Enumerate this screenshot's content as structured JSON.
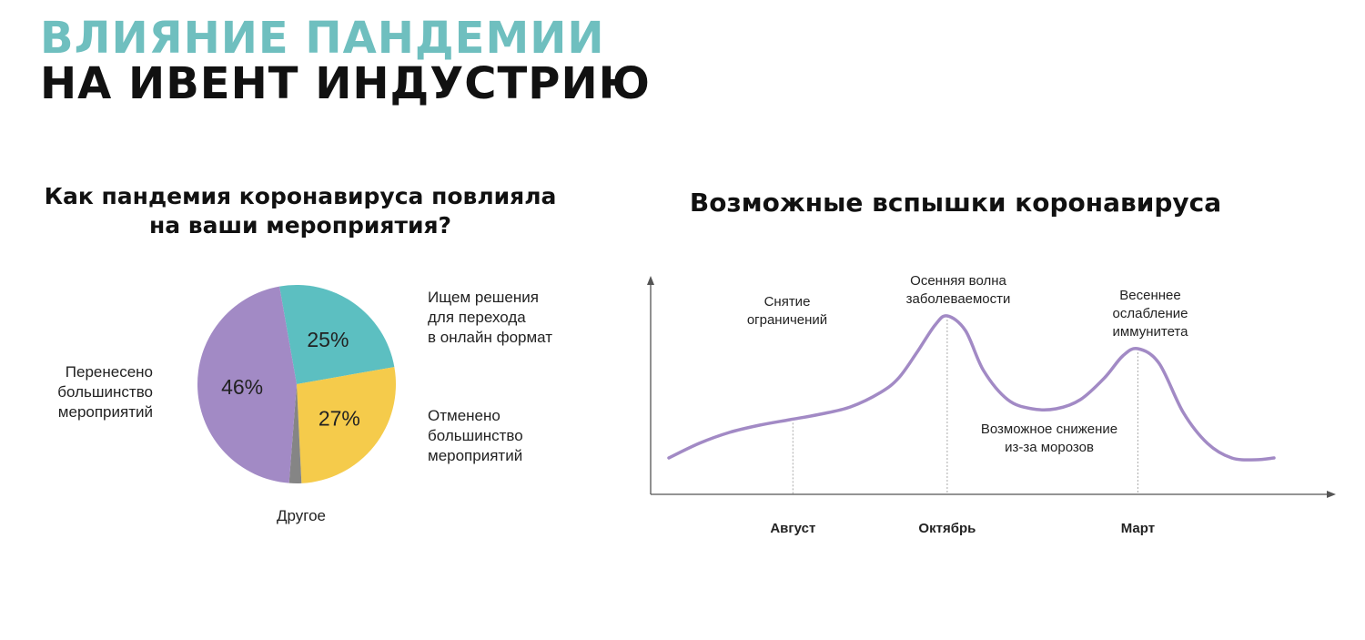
{
  "slide": {
    "title_line1": "ВЛИЯНИЕ ПАНДЕМИИ",
    "title_line2": "НА ИВЕНТ ИНДУСТРИЮ"
  },
  "pie": {
    "title_line1": "Как пандемия коронавируса повлияла",
    "title_line2": "на ваши мероприятия?",
    "label_online": [
      "Ищем решения",
      "для перехода",
      "в онлайн формат"
    ],
    "label_cancelled": [
      "Отменено",
      "большинство",
      "мероприятий"
    ],
    "label_postponed": [
      "Перенесено",
      "большинство",
      "мероприятий"
    ],
    "label_other": "Другое"
  },
  "line": {
    "title": "Возможные вспышки коронавируса",
    "ann_lifting": [
      "Снятие",
      "ограничений"
    ],
    "ann_autumn": [
      "Осенняя волна",
      "заболеваемости"
    ],
    "ann_spring": [
      "Весеннее",
      "ослабление",
      "иммунитета"
    ],
    "ann_decline": [
      "Возможное снижение",
      "из-за морозов"
    ]
  },
  "chart_data": [
    {
      "type": "pie",
      "title": "Как пандемия коронавируса повлияла на ваши мероприятия?",
      "slices": [
        {
          "label": "Ищем решения для перехода в онлайн формат",
          "value": 25,
          "value_label": "25%",
          "color": "#5cbfc1"
        },
        {
          "label": "Отменено большинство мероприятий",
          "value": 27,
          "value_label": "27%",
          "color": "#f5cb4b"
        },
        {
          "label": "Другое",
          "value": 2,
          "value_label": "",
          "color": "#858585"
        },
        {
          "label": "Перенесено большинство мероприятий",
          "value": 46,
          "value_label": "46%",
          "color": "#a28ac5"
        }
      ]
    },
    {
      "type": "line",
      "title": "Возможные вспышки коронавируса",
      "xlabel": "",
      "ylabel": "",
      "color": "#a28ac5",
      "x_ticks": [
        {
          "label": "Август",
          "x": 0.205
        },
        {
          "label": "Октябрь",
          "x": 0.46
        },
        {
          "label": "Март",
          "x": 0.775
        }
      ],
      "x": [
        0,
        0.05,
        0.1,
        0.15,
        0.2,
        0.25,
        0.3,
        0.35,
        0.38,
        0.41,
        0.44,
        0.46,
        0.49,
        0.52,
        0.56,
        0.6,
        0.64,
        0.68,
        0.72,
        0.75,
        0.775,
        0.81,
        0.85,
        0.89,
        0.93,
        0.97,
        1.0
      ],
      "y": [
        0.2,
        0.28,
        0.34,
        0.38,
        0.41,
        0.44,
        0.48,
        0.56,
        0.64,
        0.78,
        0.93,
        0.98,
        0.9,
        0.68,
        0.52,
        0.47,
        0.47,
        0.52,
        0.64,
        0.76,
        0.8,
        0.72,
        0.45,
        0.28,
        0.2,
        0.19,
        0.2
      ],
      "ylim": [
        0,
        1.2
      ],
      "xlim": [
        0,
        1.0
      ]
    }
  ]
}
